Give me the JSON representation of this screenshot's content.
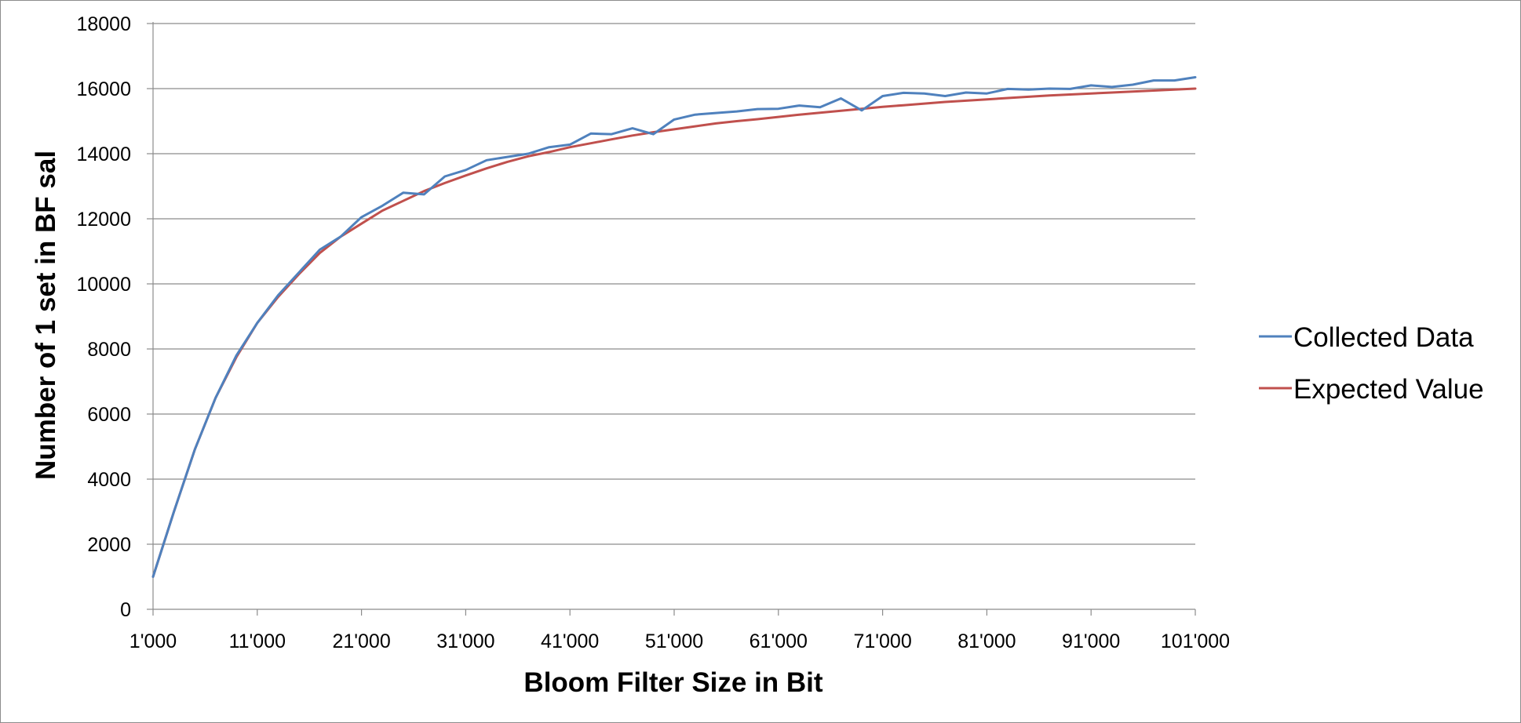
{
  "chart_data": {
    "type": "line",
    "title": "",
    "xlabel": "Bloom Filter Size in Bit",
    "ylabel": "Number of 1 set in BF sal",
    "xlim": [
      1000,
      101000
    ],
    "ylim": [
      0,
      18000
    ],
    "grid": true,
    "legend_position": "right",
    "xticks": [
      1000,
      11000,
      21000,
      31000,
      41000,
      51000,
      61000,
      71000,
      81000,
      91000,
      101000
    ],
    "xtick_labels": [
      "1'000",
      "11'000",
      "21'000",
      "31'000",
      "41'000",
      "51'000",
      "61'000",
      "71'000",
      "81'000",
      "91'000",
      "101'000"
    ],
    "yticks": [
      0,
      2000,
      4000,
      6000,
      8000,
      10000,
      12000,
      14000,
      16000,
      18000
    ],
    "ytick_labels": [
      "0",
      "2000",
      "4000",
      "6000",
      "8000",
      "10000",
      "12000",
      "14000",
      "16000",
      "18000"
    ],
    "series": [
      {
        "name": "Collected Data",
        "color": "#4f81bd",
        "x": [
          1000,
          3000,
          5000,
          7000,
          9000,
          11000,
          13000,
          15000,
          17000,
          19000,
          21000,
          23000,
          25000,
          27000,
          29000,
          31000,
          33000,
          35000,
          37000,
          39000,
          41000,
          43000,
          45000,
          47000,
          49000,
          51000,
          53000,
          55000,
          57000,
          59000,
          61000,
          63000,
          65000,
          67000,
          69000,
          71000,
          73000,
          75000,
          77000,
          79000,
          81000,
          83000,
          85000,
          87000,
          89000,
          91000,
          93000,
          95000,
          97000,
          99000,
          101000
        ],
        "y": [
          1000,
          3000,
          4900,
          6500,
          7800,
          8800,
          9650,
          10350,
          11050,
          11450,
          12050,
          12400,
          12800,
          12750,
          13300,
          13500,
          13800,
          13900,
          14000,
          14200,
          14280,
          14620,
          14600,
          14780,
          14600,
          15050,
          15200,
          15250,
          15300,
          15370,
          15380,
          15480,
          15430,
          15700,
          15330,
          15770,
          15870,
          15850,
          15770,
          15880,
          15850,
          15990,
          15970,
          16000,
          15990,
          16100,
          16050,
          16120,
          16250,
          16250,
          16350
        ]
      },
      {
        "name": "Expected Value",
        "color": "#c0504d",
        "x": [
          1000,
          3000,
          5000,
          7000,
          9000,
          11000,
          13000,
          15000,
          17000,
          19000,
          21000,
          23000,
          25000,
          27000,
          29000,
          31000,
          33000,
          35000,
          37000,
          39000,
          41000,
          43000,
          45000,
          47000,
          49000,
          51000,
          53000,
          55000,
          57000,
          59000,
          61000,
          63000,
          65000,
          67000,
          69000,
          71000,
          73000,
          75000,
          77000,
          79000,
          81000,
          83000,
          85000,
          87000,
          89000,
          91000,
          93000,
          95000,
          97000,
          99000,
          101000
        ],
        "y": [
          1000,
          3000,
          4900,
          6500,
          7750,
          8800,
          9600,
          10300,
          10950,
          11450,
          11850,
          12250,
          12550,
          12850,
          13100,
          13330,
          13550,
          13750,
          13920,
          14050,
          14200,
          14320,
          14440,
          14560,
          14660,
          14750,
          14840,
          14930,
          15000,
          15060,
          15130,
          15200,
          15260,
          15320,
          15380,
          15440,
          15490,
          15540,
          15590,
          15630,
          15670,
          15710,
          15750,
          15790,
          15820,
          15850,
          15880,
          15910,
          15940,
          15970,
          16000
        ]
      }
    ]
  }
}
